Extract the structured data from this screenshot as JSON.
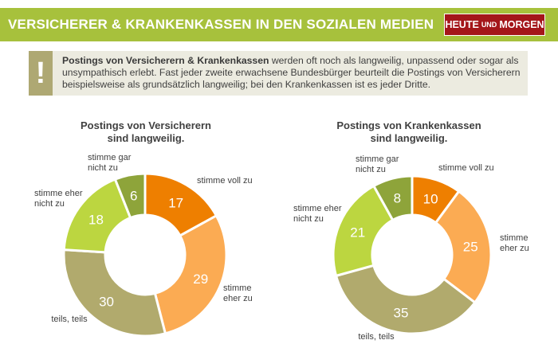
{
  "header": {
    "title": "VERSICHERER & KRANKENKASSEN IN DEN SOZIALEN MEDIEN",
    "brand": {
      "part1": "HEUTE",
      "part2": "UND",
      "part3": "MORGEN"
    }
  },
  "info": {
    "mark": "!",
    "bold": "Postings von Versicherern & Krankenkassen",
    "text": " werden oft noch als langweilig, unpassend oder sogar als unsympathisch erlebt. Fast jeder zweite erwachsene Bundesbürger beurteilt die Postings von Versicherern beispielsweise als grundsätzlich langweilig; bei den Krankenkassen ist es jeder Dritte."
  },
  "colors": {
    "header_bg": "#a7c13c",
    "brand_bg": "#a4161a",
    "info_bg": "#ecebe0",
    "excl_bg": "#aea873"
  },
  "chart_data": [
    {
      "type": "pie",
      "title_line1": "Postings von Versicherern",
      "title_line2": "sind langweilig.",
      "categories": [
        "stimme voll zu",
        "stimme eher zu",
        "teils, teils",
        "stimme eher nicht zu",
        "stimme gar nicht zu"
      ],
      "values": [
        17,
        29,
        30,
        18,
        6
      ],
      "colors": [
        "#ee7f00",
        "#fbab53",
        "#b1aa6d",
        "#bcd640",
        "#8ea43a"
      ]
    },
    {
      "type": "pie",
      "title_line1": "Postings von Krankenkassen",
      "title_line2": "sind langweilig.",
      "categories": [
        "stimme voll zu",
        "stimme eher zu",
        "teils, teils",
        "stimme eher nicht zu",
        "stimme gar nicht zu"
      ],
      "values": [
        10,
        25,
        35,
        21,
        8
      ],
      "colors": [
        "#ee7f00",
        "#fbab53",
        "#b1aa6d",
        "#bcd640",
        "#8ea43a"
      ]
    }
  ]
}
